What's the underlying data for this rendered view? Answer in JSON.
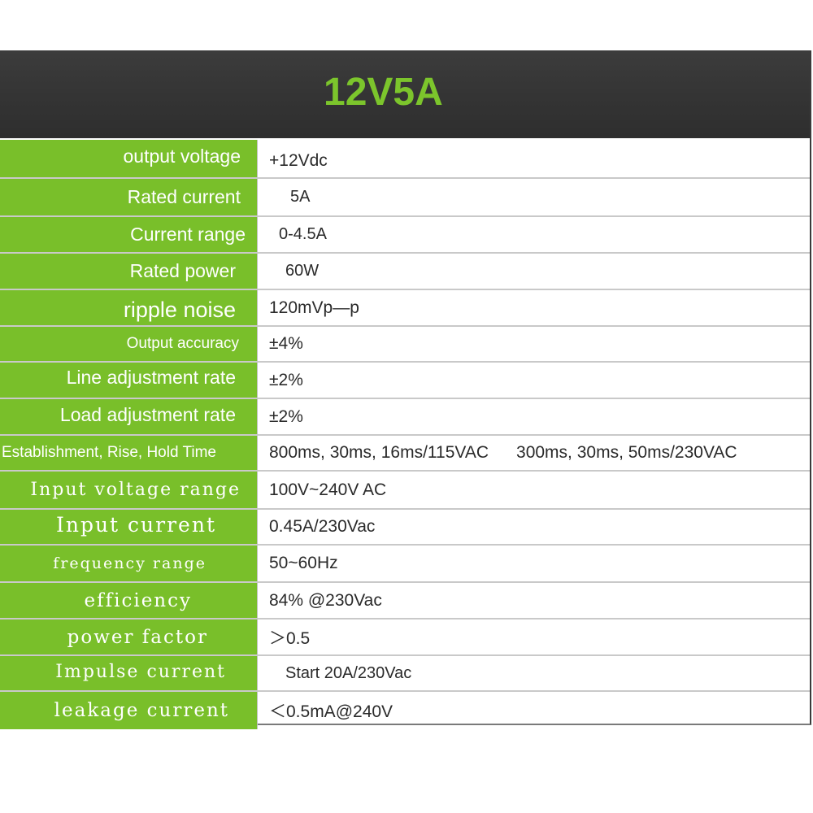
{
  "header": {
    "title": "12V5A"
  },
  "rows": [
    {
      "label": "output voltage",
      "value": "+12Vdc"
    },
    {
      "label": "Rated current",
      "value": "5A"
    },
    {
      "label": "Current range",
      "value": "0-4.5A"
    },
    {
      "label": "Rated power",
      "value": "60W"
    },
    {
      "label": "ripple noise",
      "value": "120mVp—p"
    },
    {
      "label": "Output accuracy",
      "value": "±4%"
    },
    {
      "label": "Line adjustment rate",
      "value": "±2%"
    },
    {
      "label": "Load adjustment rate",
      "value": "±2%"
    },
    {
      "label": "Establishment, Rise, Hold Time",
      "value": "800ms, 30ms, 16ms/115VAC",
      "value2": "300ms, 30ms, 50ms/230VAC"
    },
    {
      "label": "Input voltage range",
      "value": "100V~240V AC"
    },
    {
      "label": "Input current",
      "value": "0.45A/230Vac"
    },
    {
      "label": "frequency range",
      "value": "50~60Hz"
    },
    {
      "label": "efficiency",
      "value": "84% @230Vac"
    },
    {
      "label": "power factor",
      "value": "＞0.5"
    },
    {
      "label": "Impulse current",
      "value": "Start 20A/230Vac"
    },
    {
      "label": "leakage current",
      "value": "＜0.5mA@240V"
    }
  ]
}
